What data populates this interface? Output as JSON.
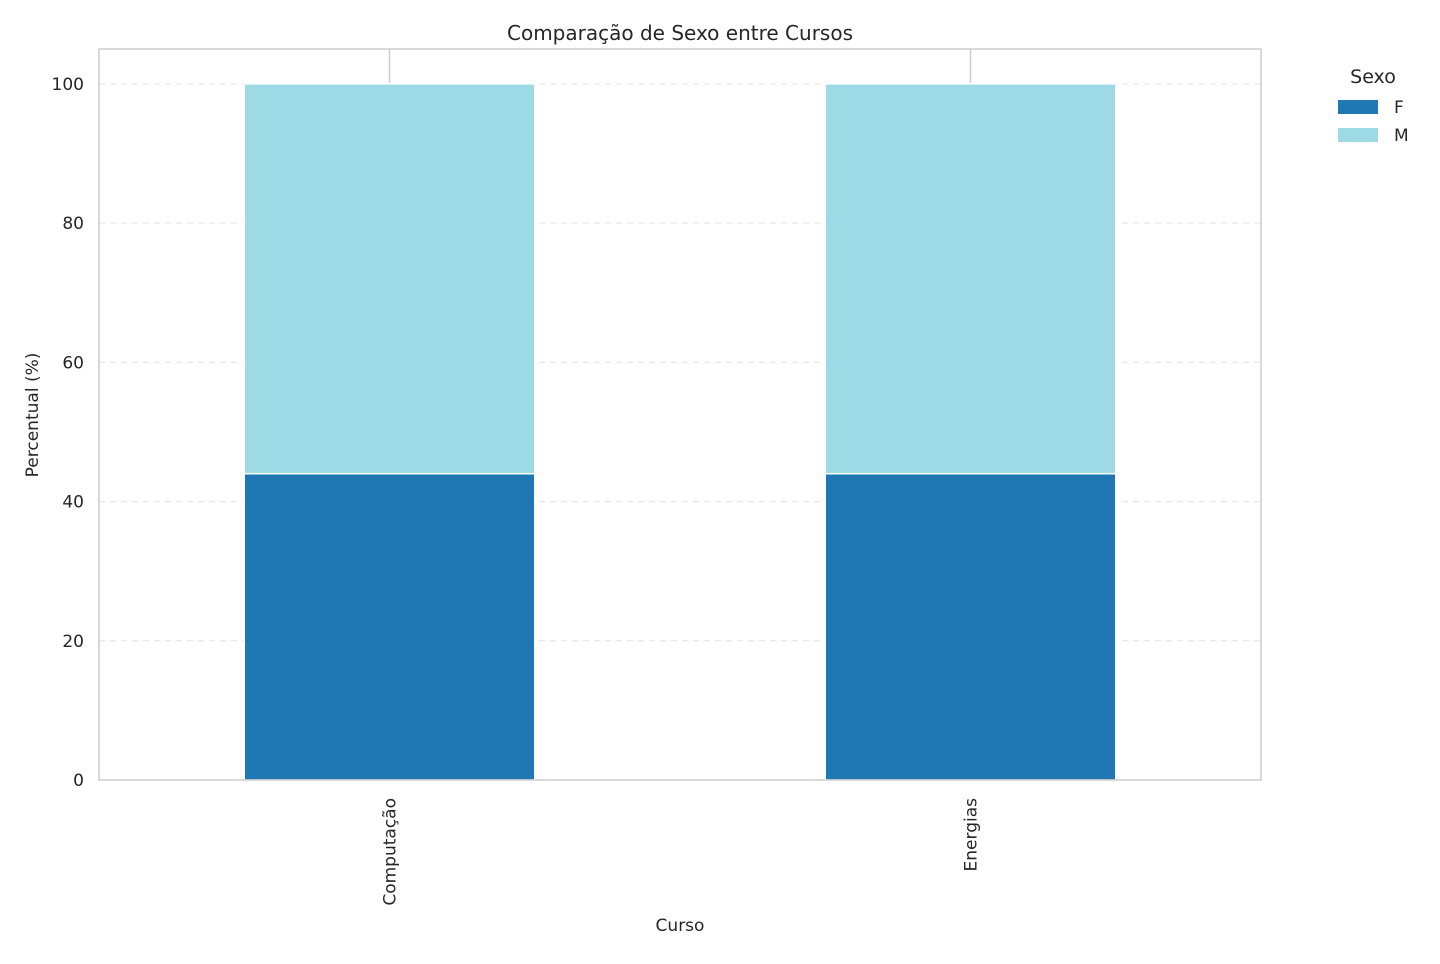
{
  "chart_data": {
    "type": "bar",
    "stacked": true,
    "title": "Comparação de Sexo entre Cursos",
    "xlabel": "Curso",
    "ylabel": "Percentual (%)",
    "categories": [
      "Computação",
      "Energias"
    ],
    "series": [
      {
        "name": "F",
        "values": [
          44.0,
          44.0
        ],
        "color": "#1f77b4"
      },
      {
        "name": "M",
        "values": [
          56.0,
          56.0
        ],
        "color": "#9edae5"
      }
    ],
    "ylim": [
      0,
      105
    ],
    "yticks": [
      0,
      20,
      40,
      60,
      80,
      100
    ],
    "grid": true,
    "legend": {
      "title": "Sexo",
      "placement": "outside-top-right"
    }
  }
}
